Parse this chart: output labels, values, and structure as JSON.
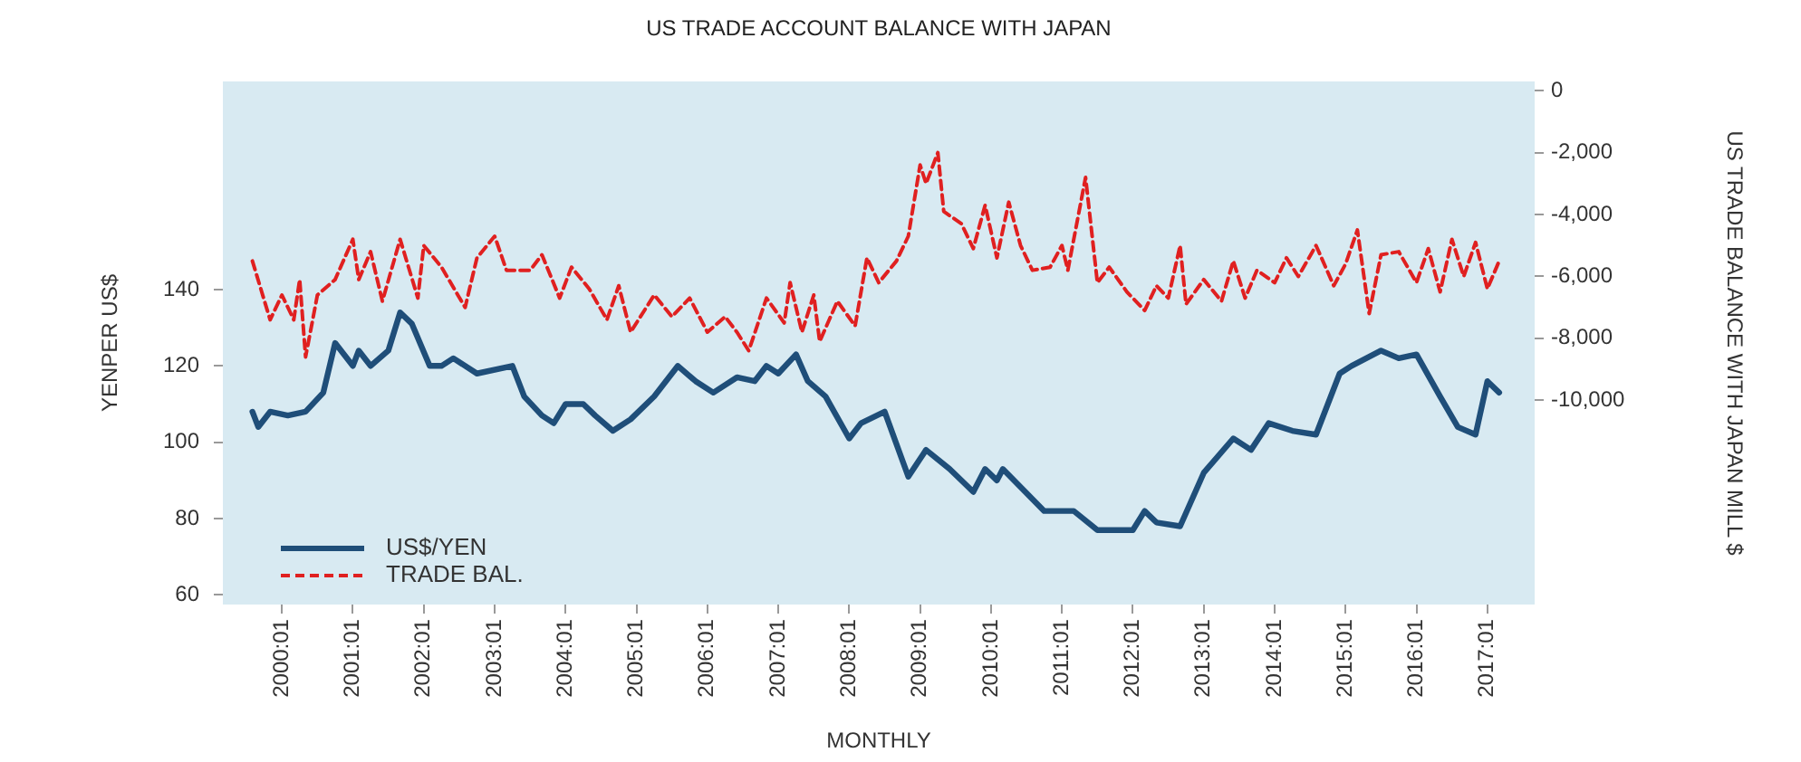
{
  "chart_data": {
    "type": "line",
    "title": "US TRADE ACCOUNT BALANCE WITH JAPAN",
    "xlabel": "MONTHLY",
    "ylabel": "YENPER US$",
    "y2label": "US TRADE BALANCE WITH JAPAN MILL $",
    "xlim": [
      "1999-03",
      "2017-09"
    ],
    "xticks": [
      {
        "value": "2000-01",
        "label": "2000:01"
      },
      {
        "value": "2001-01",
        "label": "2001:01"
      },
      {
        "value": "2002-01",
        "label": "2002:01"
      },
      {
        "value": "2003-01",
        "label": "2003:01"
      },
      {
        "value": "2004-01",
        "label": "2004:01"
      },
      {
        "value": "2005-01",
        "label": "2005:01"
      },
      {
        "value": "2006-01",
        "label": "2006:01"
      },
      {
        "value": "2007-01",
        "label": "2007:01"
      },
      {
        "value": "2008-01",
        "label": "2008:01"
      },
      {
        "value": "2009-01",
        "label": "2009:01"
      },
      {
        "value": "2010-01",
        "label": "2010:01"
      },
      {
        "value": "2011-01",
        "label": "2011:01"
      },
      {
        "value": "2012-01",
        "label": "2012:01"
      },
      {
        "value": "2013-01",
        "label": "2013:01"
      },
      {
        "value": "2014-01",
        "label": "2014:01"
      },
      {
        "value": "2015-01",
        "label": "2015:01"
      },
      {
        "value": "2016-01",
        "label": "2016:01"
      },
      {
        "value": "2017-01",
        "label": "2017:01"
      }
    ],
    "ylim": [
      57.5,
      194.5
    ],
    "yticks": [
      60,
      80,
      100,
      120,
      140
    ],
    "y2lim": [
      -16600,
      300
    ],
    "y2ticks": [
      {
        "value": 0,
        "label": "0"
      },
      {
        "value": -2000,
        "label": "-2,000"
      },
      {
        "value": -4000,
        "label": "-4,000"
      },
      {
        "value": -6000,
        "label": "-6,000"
      },
      {
        "value": -8000,
        "label": "-8,000"
      },
      {
        "value": -10000,
        "label": "-10,000"
      }
    ],
    "grid": false,
    "legend": "bottom left",
    "series": [
      {
        "name": "US$/YEN",
        "color": "#1f4e79",
        "line_style": "solid",
        "x": [
          "1999-08",
          "1999-09",
          "1999-11",
          "2000-02",
          "2000-05",
          "2000-08",
          "2000-10",
          "2001-01",
          "2001-02",
          "2001-04",
          "2001-07",
          "2001-09",
          "2001-11",
          "2002-02",
          "2002-04",
          "2002-06",
          "2002-10",
          "2003-04",
          "2003-06",
          "2003-09",
          "2003-11",
          "2004-01",
          "2004-04",
          "2004-06",
          "2004-09",
          "2004-12",
          "2005-04",
          "2005-08",
          "2005-11",
          "2006-02",
          "2006-06",
          "2006-09",
          "2006-11",
          "2007-01",
          "2007-04",
          "2007-06",
          "2007-09",
          "2008-01",
          "2008-03",
          "2008-07",
          "2008-11",
          "2009-02",
          "2009-06",
          "2009-10",
          "2009-12",
          "2010-02",
          "2010-03",
          "2010-10",
          "2011-03",
          "2011-07",
          "2012-01",
          "2012-03",
          "2012-05",
          "2012-09",
          "2013-01",
          "2013-06",
          "2013-09",
          "2013-12",
          "2014-04",
          "2014-08",
          "2014-12",
          "2015-02",
          "2015-07",
          "2015-10",
          "2016-01",
          "2016-05",
          "2016-08",
          "2016-11",
          "2017-01",
          "2017-03"
        ],
        "values": [
          108,
          104,
          108,
          107,
          108,
          113,
          126,
          120,
          124,
          120,
          124,
          134,
          131,
          120,
          120,
          122,
          118,
          120,
          112,
          107,
          105,
          110,
          110,
          107,
          103,
          106,
          112,
          120,
          116,
          113,
          117,
          116,
          120,
          118,
          123,
          116,
          112,
          101,
          105,
          108,
          91,
          98,
          93,
          87,
          93,
          90,
          93,
          82,
          82,
          77,
          77,
          82,
          79,
          78,
          92,
          101,
          98,
          105,
          103,
          102,
          118,
          120,
          124,
          122,
          123,
          112,
          104,
          102,
          116,
          113
        ]
      },
      {
        "name": "TRADE BAL.",
        "color": "#e02020",
        "line_style": "dashed",
        "axis": "y2",
        "x": [
          "1999-08",
          "1999-11",
          "2000-01",
          "2000-03",
          "2000-04",
          "2000-05",
          "2000-07",
          "2000-10",
          "2001-01",
          "2001-02",
          "2001-04",
          "2001-06",
          "2001-09",
          "2001-12",
          "2002-01",
          "2002-04",
          "2002-08",
          "2002-10",
          "2003-01",
          "2003-03",
          "2003-07",
          "2003-09",
          "2003-12",
          "2004-02",
          "2004-05",
          "2004-08",
          "2004-10",
          "2004-12",
          "2005-04",
          "2005-07",
          "2005-10",
          "2006-01",
          "2006-04",
          "2006-06",
          "2006-08",
          "2006-11",
          "2007-02",
          "2007-03",
          "2007-05",
          "2007-07",
          "2007-08",
          "2007-11",
          "2008-02",
          "2008-04",
          "2008-06",
          "2008-09",
          "2008-11",
          "2009-01",
          "2009-02",
          "2009-04",
          "2009-05",
          "2009-08",
          "2009-10",
          "2009-12",
          "2010-02",
          "2010-04",
          "2010-06",
          "2010-08",
          "2010-11",
          "2011-01",
          "2011-02",
          "2011-05",
          "2011-07",
          "2011-09",
          "2011-12",
          "2012-03",
          "2012-05",
          "2012-07",
          "2012-09",
          "2012-10",
          "2013-01",
          "2013-04",
          "2013-06",
          "2013-08",
          "2013-10",
          "2014-01",
          "2014-03",
          "2014-05",
          "2014-08",
          "2014-11",
          "2015-01",
          "2015-03",
          "2015-05",
          "2015-07",
          "2015-10",
          "2016-01",
          "2016-03",
          "2016-05",
          "2016-07",
          "2016-09",
          "2016-11",
          "2017-01",
          "2017-03"
        ],
        "values": [
          -5500,
          -7400,
          -6600,
          -7400,
          -6100,
          -8600,
          -6600,
          -6100,
          -4800,
          -6100,
          -5200,
          -6800,
          -4800,
          -6700,
          -5000,
          -5700,
          -7000,
          -5400,
          -4700,
          -5800,
          -5800,
          -5300,
          -6700,
          -5700,
          -6400,
          -7400,
          -6300,
          -7800,
          -6600,
          -7300,
          -6700,
          -7800,
          -7300,
          -7800,
          -8400,
          -6700,
          -7500,
          -6200,
          -7800,
          -6600,
          -8100,
          -6800,
          -7600,
          -5400,
          -6200,
          -5500,
          -4700,
          -2400,
          -3000,
          -2000,
          -3900,
          -4300,
          -5100,
          -3700,
          -5400,
          -3600,
          -5000,
          -5800,
          -5700,
          -5000,
          -5800,
          -2800,
          -6200,
          -5700,
          -6500,
          -7100,
          -6300,
          -6700,
          -5000,
          -6900,
          -6100,
          -6800,
          -5500,
          -6700,
          -5800,
          -6200,
          -5400,
          -6000,
          -5000,
          -6300,
          -5600,
          -4500,
          -7200,
          -5300,
          -5200,
          -6200,
          -5100,
          -6500,
          -4800,
          -6000,
          -4900,
          -6400,
          -5500
        ]
      }
    ]
  }
}
